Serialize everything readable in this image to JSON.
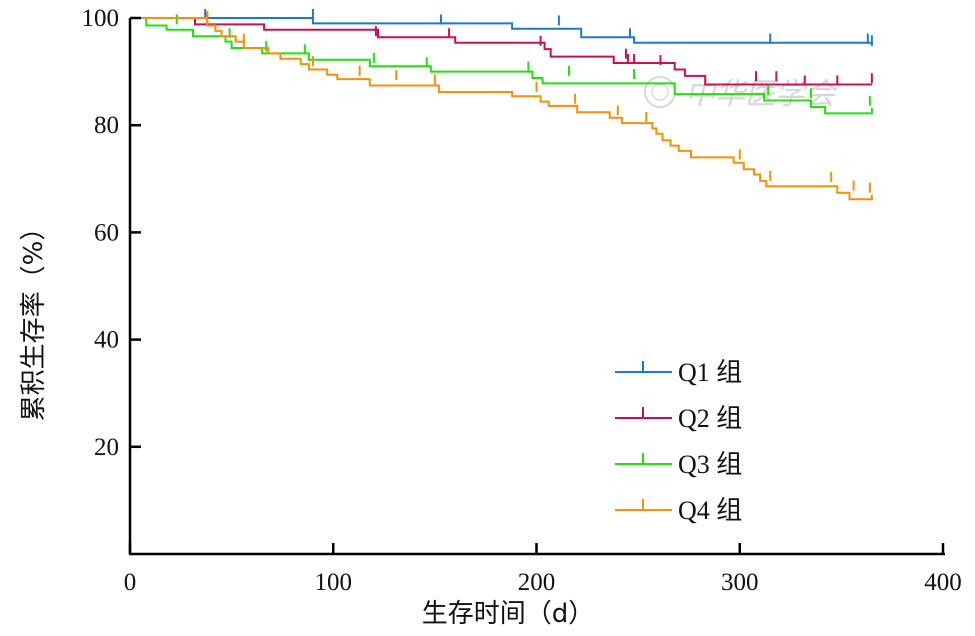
{
  "chart_data": {
    "type": "line",
    "step": true,
    "xlabel": "生存时间（d）",
    "ylabel": "累积生存率（%）",
    "xlim": [
      0,
      400
    ],
    "ylim": [
      0,
      100
    ],
    "xticks": [
      "0",
      "100",
      "200",
      "300",
      "400"
    ],
    "yticks": [
      "20",
      "40",
      "60",
      "80",
      "100"
    ],
    "grid": false,
    "legend_position": "bottom-center",
    "watermark": "中华医学会",
    "series": [
      {
        "name": "Q1 组",
        "color": "#1f78c8",
        "points": [
          [
            0,
            100
          ],
          [
            90,
            100
          ],
          [
            90,
            99
          ],
          [
            188,
            99
          ],
          [
            188,
            98
          ],
          [
            222,
            98
          ],
          [
            222,
            96.4
          ],
          [
            248,
            96.4
          ],
          [
            248,
            95.4
          ],
          [
            365,
            95.4
          ],
          [
            365,
            94.8
          ]
        ],
        "censored": [
          [
            37,
            100
          ],
          [
            90,
            100
          ],
          [
            153,
            99
          ],
          [
            211,
            98.8
          ],
          [
            246,
            96.4
          ],
          [
            315,
            95.4
          ],
          [
            363,
            95.4
          ],
          [
            365,
            95.1
          ]
        ]
      },
      {
        "name": "Q2 组",
        "color": "#c8105a",
        "points": [
          [
            0,
            100
          ],
          [
            32,
            100
          ],
          [
            32,
            98.8
          ],
          [
            66,
            98.8
          ],
          [
            66,
            97.8
          ],
          [
            122,
            97.8
          ],
          [
            122,
            96.4
          ],
          [
            160,
            96.4
          ],
          [
            160,
            95.4
          ],
          [
            204,
            95.4
          ],
          [
            204,
            94.2
          ],
          [
            207,
            94.2
          ],
          [
            207,
            92.8
          ],
          [
            238,
            92.8
          ],
          [
            238,
            91.6
          ],
          [
            268,
            91.6
          ],
          [
            268,
            90.4
          ],
          [
            273,
            90.4
          ],
          [
            273,
            89.2
          ],
          [
            283,
            89.2
          ],
          [
            283,
            87.6
          ],
          [
            365,
            87.6
          ]
        ],
        "censored": [
          [
            38,
            99.3
          ],
          [
            121,
            96.8
          ],
          [
            157,
            96.4
          ],
          [
            202,
            95
          ],
          [
            244,
            92.6
          ],
          [
            245,
            91.6
          ],
          [
            248,
            91.6
          ],
          [
            261,
            91.4
          ],
          [
            308,
            88.4
          ],
          [
            318,
            88.4
          ],
          [
            332,
            87.6
          ],
          [
            348,
            87.6
          ],
          [
            365,
            88
          ]
        ]
      },
      {
        "name": "Q3 组",
        "color": "#22e010",
        "points": [
          [
            0,
            100
          ],
          [
            8,
            100
          ],
          [
            8,
            98.6
          ],
          [
            18,
            98.6
          ],
          [
            18,
            97.8
          ],
          [
            31,
            97.8
          ],
          [
            31,
            96.6
          ],
          [
            47,
            96.6
          ],
          [
            47,
            95.6
          ],
          [
            50,
            95.6
          ],
          [
            50,
            94.4
          ],
          [
            65,
            94.4
          ],
          [
            65,
            93.4
          ],
          [
            88,
            93.4
          ],
          [
            88,
            92.2
          ],
          [
            118,
            92.2
          ],
          [
            118,
            91
          ],
          [
            148,
            91
          ],
          [
            148,
            90
          ],
          [
            198,
            90
          ],
          [
            198,
            88.8
          ],
          [
            203,
            88.8
          ],
          [
            203,
            87.8
          ],
          [
            268,
            87.8
          ],
          [
            268,
            85.8
          ],
          [
            312,
            85.8
          ],
          [
            312,
            84.6
          ],
          [
            335,
            84.6
          ],
          [
            335,
            83.4
          ],
          [
            342,
            83.4
          ],
          [
            342,
            82.2
          ],
          [
            365,
            82.2
          ],
          [
            365,
            83.2
          ]
        ],
        "censored": [
          [
            23,
            99
          ],
          [
            49,
            96.4
          ],
          [
            67,
            94
          ],
          [
            86,
            93.4
          ],
          [
            120,
            91.8
          ],
          [
            146,
            91
          ],
          [
            196,
            90.2
          ],
          [
            216,
            89.4
          ],
          [
            248,
            88.8
          ],
          [
            314,
            85.8
          ],
          [
            335,
            85.2
          ],
          [
            364,
            83.8
          ]
        ]
      },
      {
        "name": "Q4 组",
        "color": "#f5900a",
        "points": [
          [
            0,
            100
          ],
          [
            38,
            100
          ],
          [
            38,
            98.6
          ],
          [
            42,
            98.6
          ],
          [
            42,
            97.6
          ],
          [
            45,
            97.6
          ],
          [
            45,
            96.6
          ],
          [
            52,
            96.6
          ],
          [
            52,
            95.6
          ],
          [
            56,
            95.6
          ],
          [
            56,
            94.4
          ],
          [
            68,
            94.4
          ],
          [
            68,
            93.4
          ],
          [
            74,
            93.4
          ],
          [
            74,
            92.4
          ],
          [
            84,
            92.4
          ],
          [
            84,
            91.4
          ],
          [
            88,
            91.4
          ],
          [
            88,
            90.4
          ],
          [
            97,
            90.4
          ],
          [
            97,
            89.4
          ],
          [
            102,
            89.4
          ],
          [
            102,
            88.6
          ],
          [
            118,
            88.6
          ],
          [
            118,
            87.4
          ],
          [
            152,
            87.4
          ],
          [
            152,
            86.2
          ],
          [
            188,
            86.2
          ],
          [
            188,
            85.4
          ],
          [
            202,
            85.4
          ],
          [
            202,
            84.4
          ],
          [
            206,
            84.4
          ],
          [
            206,
            83.6
          ],
          [
            220,
            83.6
          ],
          [
            220,
            82.4
          ],
          [
            236,
            82.4
          ],
          [
            236,
            81.4
          ],
          [
            242,
            81.4
          ],
          [
            242,
            80.4
          ],
          [
            257,
            80.4
          ],
          [
            257,
            79.4
          ],
          [
            259,
            79.4
          ],
          [
            259,
            78.4
          ],
          [
            262,
            78.4
          ],
          [
            262,
            77.2
          ],
          [
            266,
            77.2
          ],
          [
            266,
            76.2
          ],
          [
            270,
            76.2
          ],
          [
            270,
            75.2
          ],
          [
            276,
            75.2
          ],
          [
            276,
            74
          ],
          [
            297,
            74
          ],
          [
            297,
            73
          ],
          [
            302,
            73
          ],
          [
            302,
            71.8
          ],
          [
            307,
            71.8
          ],
          [
            307,
            70.8
          ],
          [
            310,
            70.8
          ],
          [
            310,
            69.6
          ],
          [
            313,
            69.6
          ],
          [
            313,
            68.6
          ],
          [
            348,
            68.6
          ],
          [
            348,
            67.4
          ],
          [
            354,
            67.4
          ],
          [
            354,
            66.2
          ],
          [
            365,
            66.2
          ],
          [
            365,
            67
          ]
        ],
        "censored": [
          [
            38,
            99.6
          ],
          [
            56,
            95.4
          ],
          [
            90,
            91.2
          ],
          [
            113,
            89.4
          ],
          [
            131,
            88.6
          ],
          [
            150,
            87.8
          ],
          [
            200,
            86.4
          ],
          [
            219,
            84.2
          ],
          [
            240,
            82
          ],
          [
            254,
            80.8
          ],
          [
            300,
            73.8
          ],
          [
            315,
            69.8
          ],
          [
            345,
            69.6
          ],
          [
            356,
            68
          ],
          [
            364,
            67.6
          ]
        ]
      }
    ]
  }
}
